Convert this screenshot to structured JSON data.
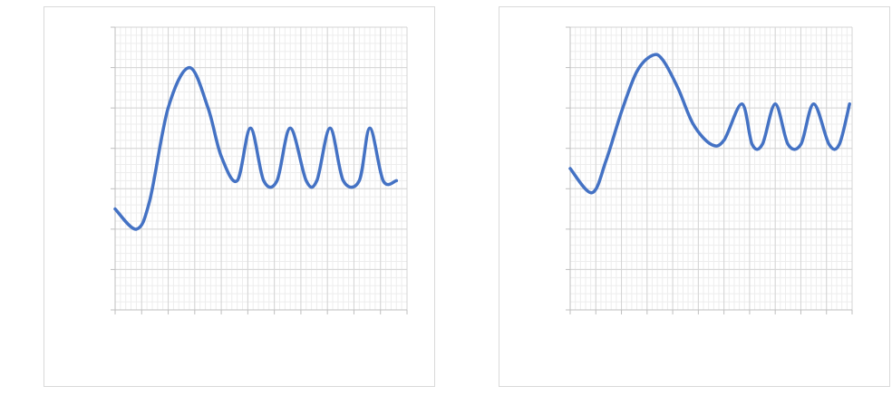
{
  "chart_data": [
    {
      "type": "line",
      "title": "",
      "xlabel": "",
      "ylabel": "",
      "xlim": [
        0,
        11
      ],
      "ylim": [
        0,
        7
      ],
      "grid": true,
      "minor_grid": true,
      "color": "#4472c4",
      "series": [
        {
          "x": [
            0,
            0.8,
            1.3,
            2.0,
            2.8,
            3.5,
            4.0,
            4.6,
            5.1,
            5.6,
            6.1,
            6.6,
            7.2,
            7.6,
            8.1,
            8.6,
            9.2,
            9.6,
            10.1,
            10.6
          ],
          "y": [
            2.5,
            2.0,
            2.7,
            5.0,
            6.0,
            5.0,
            3.8,
            3.2,
            4.5,
            3.2,
            3.2,
            4.5,
            3.2,
            3.2,
            4.5,
            3.2,
            3.2,
            4.5,
            3.2,
            3.2
          ]
        }
      ]
    },
    {
      "type": "line",
      "title": "",
      "xlabel": "",
      "ylabel": "",
      "xlim": [
        0,
        11
      ],
      "ylim": [
        0,
        7
      ],
      "grid": true,
      "minor_grid": true,
      "color": "#4472c4",
      "series": [
        {
          "x": [
            0,
            0.85,
            1.4,
            2.0,
            2.6,
            3.2,
            3.6,
            4.2,
            4.8,
            5.5,
            6.0,
            6.7,
            7.1,
            7.5,
            8.0,
            8.5,
            9.0,
            9.5,
            10.1,
            10.5,
            10.9
          ],
          "y": [
            3.5,
            2.9,
            3.7,
            4.9,
            5.9,
            6.3,
            6.2,
            5.5,
            4.6,
            4.1,
            4.2,
            5.1,
            4.1,
            4.1,
            5.1,
            4.1,
            4.1,
            5.1,
            4.1,
            4.1,
            5.1
          ]
        }
      ]
    }
  ]
}
